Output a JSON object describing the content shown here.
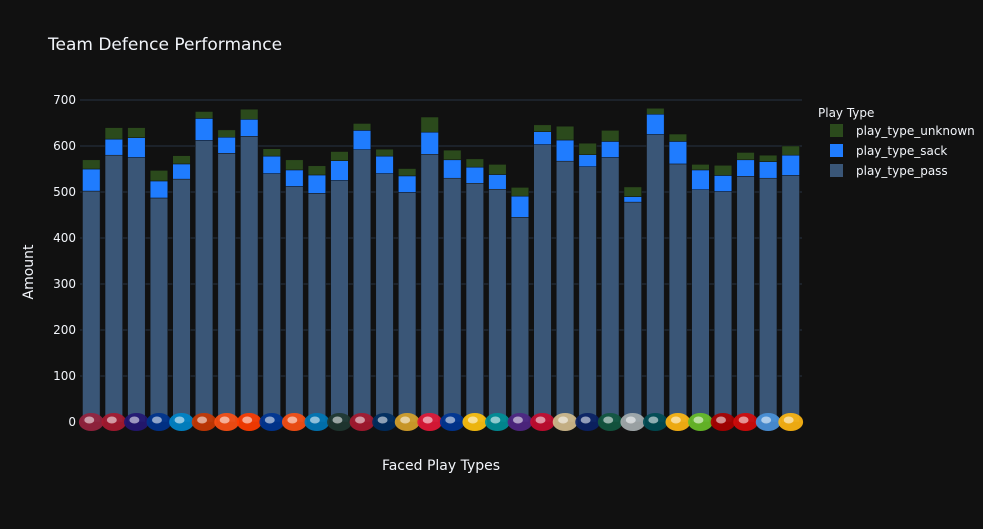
{
  "chart_data": {
    "type": "bar",
    "stacked": true,
    "title": "Team Defence Performance",
    "xlabel": "Faced Play Types",
    "ylabel": "Amount",
    "ylim": [
      0,
      700
    ],
    "yticks": [
      0,
      100,
      200,
      300,
      400,
      500,
      600,
      700
    ],
    "grid": true,
    "legend": {
      "title": "Play Type",
      "placement": "top-right",
      "entries": [
        "play_type_unknown",
        "play_type_sack",
        "play_type_pass"
      ]
    },
    "categories": [
      "ARI",
      "ATL",
      "BAL",
      "BUF",
      "CAR",
      "CHI",
      "CIN",
      "CLE",
      "DAL",
      "DEN",
      "DET",
      "GB",
      "HOU",
      "IND",
      "JAX",
      "KC",
      "LA",
      "LAC",
      "MIA",
      "MIN",
      "NE",
      "NO",
      "NYG",
      "NYJ",
      "OAK",
      "PHI",
      "PIT",
      "SEA",
      "SF",
      "TB",
      "TEN",
      "WAS"
    ],
    "series": [
      {
        "name": "play_type_pass",
        "color": "#3a5677",
        "values": [
          502,
          580,
          575,
          487,
          528,
          612,
          584,
          621,
          540,
          512,
          497,
          525,
          592,
          540,
          499,
          582,
          530,
          519,
          506,
          445,
          603,
          567,
          555,
          575,
          478,
          625,
          561,
          505,
          501,
          534,
          530,
          536
        ]
      },
      {
        "name": "play_type_sack",
        "color": "#1f7cff",
        "values": [
          48,
          35,
          43,
          37,
          33,
          48,
          35,
          37,
          38,
          36,
          40,
          43,
          42,
          38,
          36,
          48,
          40,
          35,
          32,
          46,
          28,
          46,
          26,
          35,
          12,
          44,
          49,
          43,
          35,
          36,
          36,
          44
        ]
      },
      {
        "name": "play_type_unknown",
        "color": "#2b4a1c",
        "values": [
          20,
          25,
          22,
          23,
          18,
          15,
          16,
          22,
          16,
          22,
          20,
          20,
          15,
          15,
          16,
          33,
          21,
          18,
          22,
          19,
          15,
          30,
          25,
          24,
          21,
          13,
          16,
          12,
          22,
          16,
          14,
          20
        ]
      }
    ],
    "team_logos": [
      {
        "team": "ARI",
        "color": "#97233f"
      },
      {
        "team": "ATL",
        "color": "#a71930"
      },
      {
        "team": "BAL",
        "color": "#241773"
      },
      {
        "team": "BUF",
        "color": "#00338d"
      },
      {
        "team": "CAR",
        "color": "#0085ca"
      },
      {
        "team": "CHI",
        "color": "#c83803"
      },
      {
        "team": "CIN",
        "color": "#fb4f14"
      },
      {
        "team": "CLE",
        "color": "#ff3c00"
      },
      {
        "team": "DAL",
        "color": "#003594"
      },
      {
        "team": "DEN",
        "color": "#fb4f14"
      },
      {
        "team": "DET",
        "color": "#0076b6"
      },
      {
        "team": "GB",
        "color": "#203731"
      },
      {
        "team": "HOU",
        "color": "#a71930"
      },
      {
        "team": "IND",
        "color": "#002c5f"
      },
      {
        "team": "JAX",
        "color": "#d7a22a"
      },
      {
        "team": "KC",
        "color": "#e31837"
      },
      {
        "team": "LA",
        "color": "#003594"
      },
      {
        "team": "LAC",
        "color": "#ffc20e"
      },
      {
        "team": "MIA",
        "color": "#008e97"
      },
      {
        "team": "MIN",
        "color": "#4f2683"
      },
      {
        "team": "NE",
        "color": "#c60c30"
      },
      {
        "team": "NO",
        "color": "#d3bc8d"
      },
      {
        "team": "NYG",
        "color": "#0b2265"
      },
      {
        "team": "NYJ",
        "color": "#125740"
      },
      {
        "team": "OAK",
        "color": "#a5acaf"
      },
      {
        "team": "PHI",
        "color": "#004c54"
      },
      {
        "team": "PIT",
        "color": "#ffb612"
      },
      {
        "team": "SEA",
        "color": "#69be28"
      },
      {
        "team": "SF",
        "color": "#aa0000"
      },
      {
        "team": "TB",
        "color": "#d50a0a"
      },
      {
        "team": "TEN",
        "color": "#4b92db"
      },
      {
        "team": "WAS",
        "color": "#ffb612"
      }
    ]
  }
}
